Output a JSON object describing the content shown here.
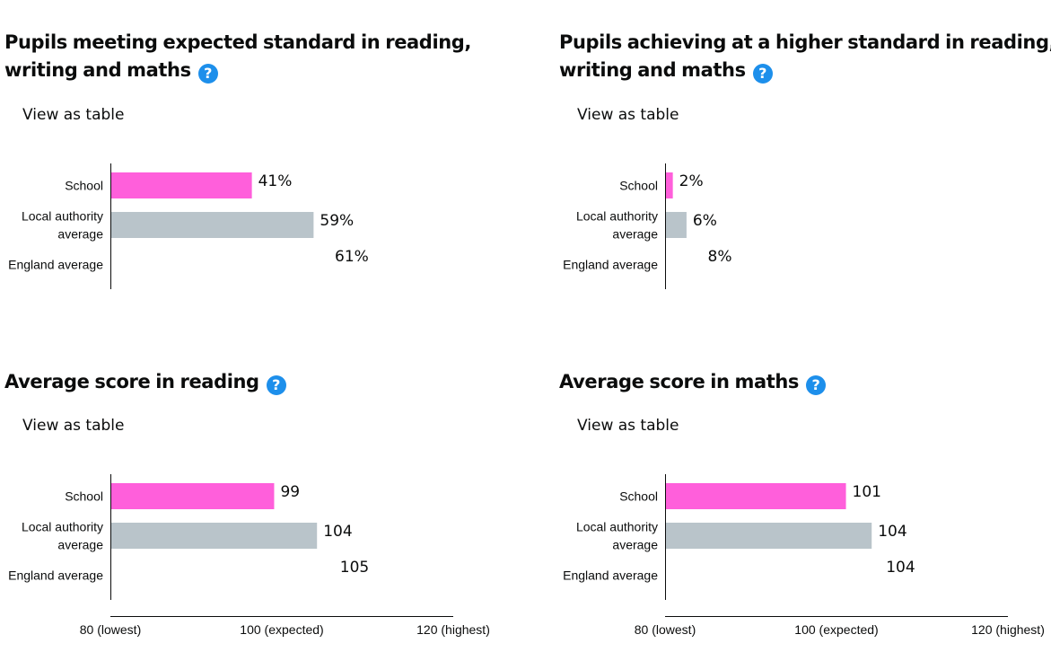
{
  "chart_data": [
    {
      "type": "bar",
      "title": "Pupils meeting expected standard in reading, writing and maths",
      "action": "View as table",
      "categories": [
        "School",
        "Local authority average",
        "England average"
      ],
      "category_lines": [
        [
          "School"
        ],
        [
          "Local authority",
          "average"
        ],
        [
          "England average"
        ]
      ],
      "values": [
        41,
        59,
        61
      ],
      "value_labels": [
        "41%",
        "59%",
        "61%"
      ],
      "xlim": [
        0,
        100
      ],
      "ticks": [],
      "colors": [
        "#ff5fdb",
        "#b9c4ca",
        "#b9c4ca"
      ]
    },
    {
      "type": "bar",
      "title": "Pupils achieving at a higher standard in reading, writing and maths",
      "action": "View as table",
      "categories": [
        "School",
        "Local authority average",
        "England average"
      ],
      "category_lines": [
        [
          "School"
        ],
        [
          "Local authority",
          "average"
        ],
        [
          "England average"
        ]
      ],
      "values": [
        2,
        6,
        8
      ],
      "value_labels": [
        "2%",
        "6%",
        "8%"
      ],
      "xlim": [
        0,
        100
      ],
      "ticks": [],
      "colors": [
        "#ff5fdb",
        "#b9c4ca",
        "#b9c4ca"
      ]
    },
    {
      "type": "bar",
      "title": "Average score in reading",
      "action": "View as table",
      "categories": [
        "School",
        "Local authority average",
        "England average"
      ],
      "category_lines": [
        [
          "School"
        ],
        [
          "Local authority",
          "average"
        ],
        [
          "England average"
        ]
      ],
      "values": [
        99,
        104,
        105
      ],
      "value_labels": [
        "99",
        "104",
        "105"
      ],
      "xlim": [
        80,
        120
      ],
      "ticks": [
        {
          "value": 80,
          "label": "80 (lowest)"
        },
        {
          "value": 100,
          "label": "100 (expected)"
        },
        {
          "value": 120,
          "label": "120 (highest)"
        }
      ],
      "colors": [
        "#ff5fdb",
        "#b9c4ca",
        "#b9c4ca"
      ]
    },
    {
      "type": "bar",
      "title": "Average score in maths",
      "action": "View as table",
      "categories": [
        "School",
        "Local authority average",
        "England average"
      ],
      "category_lines": [
        [
          "School"
        ],
        [
          "Local authority",
          "average"
        ],
        [
          "England average"
        ]
      ],
      "values": [
        101,
        104,
        104
      ],
      "value_labels": [
        "101",
        "104",
        "104"
      ],
      "xlim": [
        80,
        120
      ],
      "ticks": [
        {
          "value": 80,
          "label": "80 (lowest)"
        },
        {
          "value": 100,
          "label": "100 (expected)"
        },
        {
          "value": 120,
          "label": "120 (highest)"
        }
      ],
      "colors": [
        "#ff5fdb",
        "#b9c4ca",
        "#b9c4ca"
      ]
    }
  ],
  "icons": {
    "help": "question-circle-icon",
    "help_glyph": "?"
  }
}
